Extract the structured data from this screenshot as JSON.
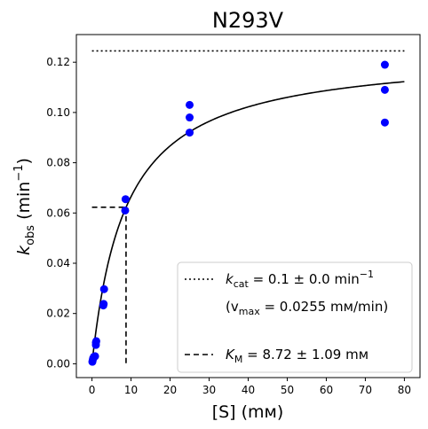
{
  "chart_data": {
    "type": "scatter",
    "title": "N293V",
    "xlabel": "[S] (mм)",
    "ylabel_main": "k",
    "ylabel_sub": "obs",
    "ylabel_units_pre": " (min",
    "ylabel_units_sup": "−1",
    "ylabel_units_post": ")",
    "xlim": [
      -4,
      84
    ],
    "ylim": [
      -0.0055,
      0.131
    ],
    "xticks": [
      0,
      10,
      20,
      30,
      40,
      50,
      60,
      70,
      80
    ],
    "yticks": [
      0.0,
      0.02,
      0.04,
      0.06,
      0.08,
      0.1,
      0.12
    ],
    "ytick_labels": [
      "0.00",
      "0.02",
      "0.04",
      "0.06",
      "0.08",
      "0.10",
      "0.12"
    ],
    "grid": false,
    "legend_position": "lower-right",
    "colors": {
      "points": "#0000ff",
      "fit": "#000000"
    },
    "points": {
      "x": [
        0.1,
        0.2,
        0.3,
        0.5,
        0.8,
        1.0,
        1.0,
        1.1,
        2.9,
        3.0,
        3.1,
        8.5,
        8.6,
        25,
        25,
        25,
        75,
        75,
        75
      ],
      "y": [
        0.0008,
        0.0015,
        0.0022,
        0.0028,
        0.003,
        0.0075,
        0.0085,
        0.009,
        0.0232,
        0.0238,
        0.0297,
        0.061,
        0.0655,
        0.092,
        0.098,
        0.103,
        0.096,
        0.109,
        0.119
      ]
    },
    "fit": {
      "model": "michaelis-menten",
      "vmax": 0.1245,
      "km": 8.72,
      "x_range": [
        0.1,
        80
      ]
    },
    "kcat_line": {
      "y": 0.1245,
      "x_range": [
        0,
        80
      ],
      "style": "dotted"
    },
    "km_lines": {
      "x": 8.72,
      "y": 0.0623,
      "style": "dashed"
    },
    "legend": {
      "line1_pre": "k",
      "line1_sub": "cat",
      "line1_post": " = 0.1 ± 0.0 min",
      "line1_sup": "−1",
      "line2_pre": "(v",
      "line2_sub": "max",
      "line2_post": " = 0.0255 mм/min)",
      "line3_pre": "K",
      "line3_sub": "M",
      "line3_post": " = 8.72 ± 1.09 mм"
    }
  }
}
